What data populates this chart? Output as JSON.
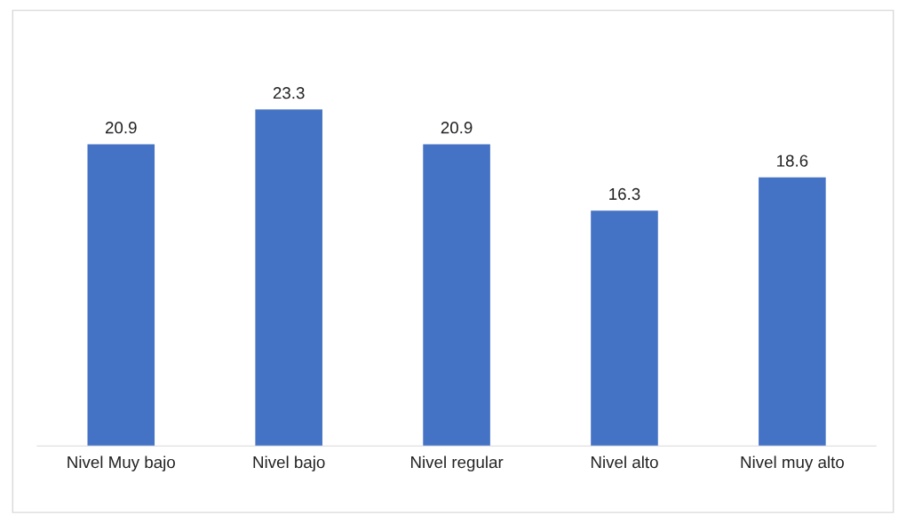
{
  "chart_data": {
    "type": "bar",
    "categories": [
      "Nivel Muy bajo",
      "Nivel bajo",
      "Nivel regular",
      "Nivel alto",
      "Nivel muy alto"
    ],
    "values": [
      20.9,
      23.3,
      20.9,
      16.3,
      18.6
    ],
    "color": "#4472c4",
    "tick_labels": "x",
    "data_labels": true,
    "grid": false,
    "legend": false
  }
}
